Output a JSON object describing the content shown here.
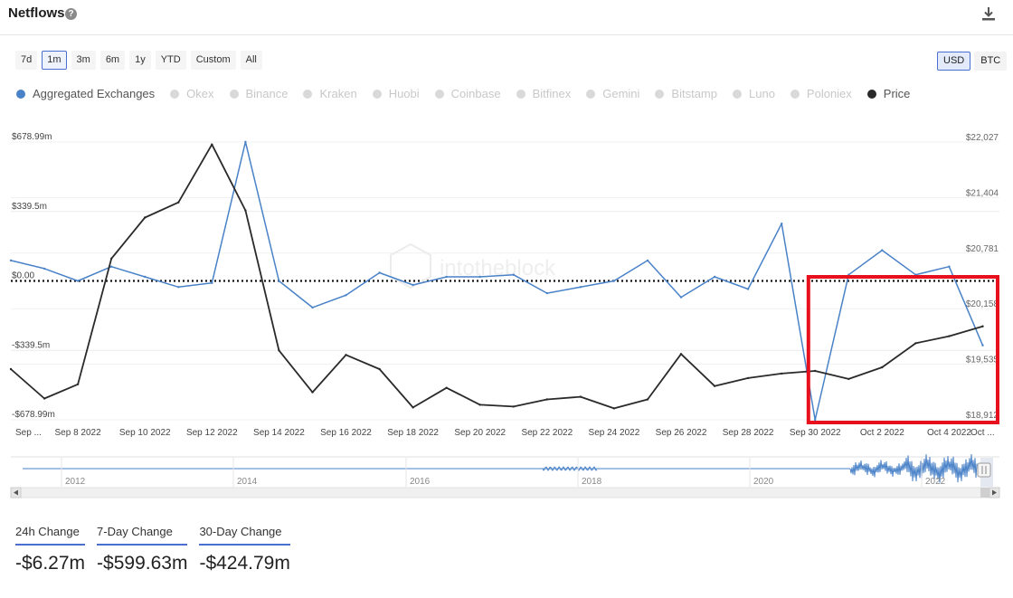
{
  "header": {
    "title": "Netflows",
    "help_icon": "?",
    "download_icon": "download-icon"
  },
  "ranges": [
    "7d",
    "1m",
    "3m",
    "6m",
    "1y",
    "YTD",
    "Custom",
    "All"
  ],
  "active_range": "1m",
  "currencies": [
    "USD",
    "BTC"
  ],
  "active_currency": "USD",
  "legend": [
    {
      "name": "Aggregated Exchanges",
      "active": true,
      "color": "#4a82c8"
    },
    {
      "name": "Okex",
      "active": false,
      "color": "#d9d9d9"
    },
    {
      "name": "Binance",
      "active": false,
      "color": "#d9d9d9"
    },
    {
      "name": "Kraken",
      "active": false,
      "color": "#d9d9d9"
    },
    {
      "name": "Huobi",
      "active": false,
      "color": "#d9d9d9"
    },
    {
      "name": "Coinbase",
      "active": false,
      "color": "#d9d9d9"
    },
    {
      "name": "Bitfinex",
      "active": false,
      "color": "#d9d9d9"
    },
    {
      "name": "Gemini",
      "active": false,
      "color": "#d9d9d9"
    },
    {
      "name": "Bitstamp",
      "active": false,
      "color": "#d9d9d9"
    },
    {
      "name": "Luno",
      "active": false,
      "color": "#d9d9d9"
    },
    {
      "name": "Poloniex",
      "active": false,
      "color": "#d9d9d9"
    },
    {
      "name": "Price",
      "active": true,
      "color": "#2a2a2a"
    }
  ],
  "chart_data": {
    "type": "line",
    "x_tick_labels": [
      "Sep ...",
      "Sep 8 2022",
      "Sep 10 2022",
      "Sep 12 2022",
      "Sep 14 2022",
      "Sep 16 2022",
      "Sep 18 2022",
      "Sep 20 2022",
      "Sep 22 2022",
      "Sep 24 2022",
      "Sep 26 2022",
      "Sep 28 2022",
      "Sep 30 2022",
      "Oct 2 2022",
      "Oct 4 2022",
      "Oct ..."
    ],
    "left_axis_labels": [
      "$678.99m",
      "$339.5m",
      "$0.00",
      "-$339.5m",
      "-$678.99m"
    ],
    "right_axis_labels": [
      "$22,027",
      "$21,404",
      "$20,781",
      "$20,158",
      "$19,535",
      "$18,912"
    ],
    "ylim_left": [
      -678.99,
      678.99
    ],
    "ylim_right": [
      18912,
      22027
    ],
    "x": [
      0,
      0.5,
      1,
      1.5,
      2,
      2.5,
      3,
      3.5,
      4,
      4.5,
      5,
      5.5,
      6,
      6.5,
      7,
      7.5,
      8,
      8.5,
      9,
      9.5,
      10,
      10.5,
      11,
      11.5,
      12,
      12.5,
      13,
      13.5,
      14,
      14.5,
      15,
      15.5,
      16,
      16.5,
      17,
      17.5,
      18,
      18.5,
      19,
      19.5,
      20,
      20.5,
      21,
      21.5,
      22,
      22.5,
      23,
      23.5,
      24,
      24.5,
      25,
      25.5,
      26,
      26.5,
      27,
      27.5,
      28,
      28.5,
      29,
      29.5
    ],
    "series": [
      {
        "name": "Aggregated Exchanges",
        "axis": "left",
        "color": "#4a82c8",
        "x": [
          0,
          1,
          2,
          3,
          4,
          5,
          6,
          7,
          8,
          9,
          10,
          11,
          12,
          13,
          14,
          15,
          16,
          17,
          18,
          19,
          20,
          21,
          22,
          23,
          24,
          25,
          26,
          27,
          28,
          29
        ],
        "values": [
          100,
          60,
          0,
          70,
          20,
          -30,
          -10,
          680,
          0,
          -130,
          -70,
          40,
          -20,
          20,
          20,
          30,
          -60,
          -30,
          0,
          100,
          -80,
          20,
          -40,
          280,
          -679,
          30,
          150,
          30,
          70,
          -315
        ]
      },
      {
        "name": "Price",
        "axis": "right",
        "color": "#2a2a2a",
        "x": [
          0,
          1,
          2,
          3,
          4,
          5,
          6,
          7,
          8,
          9,
          10,
          11,
          12,
          13,
          14,
          15,
          16,
          17,
          18,
          19,
          20,
          21,
          22,
          23,
          24,
          25,
          26,
          27,
          28,
          29
        ],
        "values": [
          19480,
          19150,
          19310,
          20720,
          21180,
          21350,
          22000,
          21260,
          19690,
          19220,
          19640,
          19480,
          19050,
          19270,
          19080,
          19060,
          19140,
          19170,
          19040,
          19140,
          19650,
          19290,
          19380,
          19430,
          19460,
          19370,
          19500,
          19770,
          19850,
          19960
        ]
      }
    ],
    "grid": true,
    "zero_line": "dotted",
    "watermark": "intotheblock",
    "highlight_box": {
      "x_range": [
        23.8,
        29.5
      ],
      "color": "#e8101c"
    }
  },
  "navigator": {
    "year_labels": [
      "2012",
      "2014",
      "2016",
      "2018",
      "2020",
      "2022"
    ]
  },
  "stats": [
    {
      "label": "24h Change",
      "value": "-$6.27m"
    },
    {
      "label": "7-Day Change",
      "value": "-$599.63m"
    },
    {
      "label": "30-Day Change",
      "value": "-$424.79m"
    }
  ]
}
